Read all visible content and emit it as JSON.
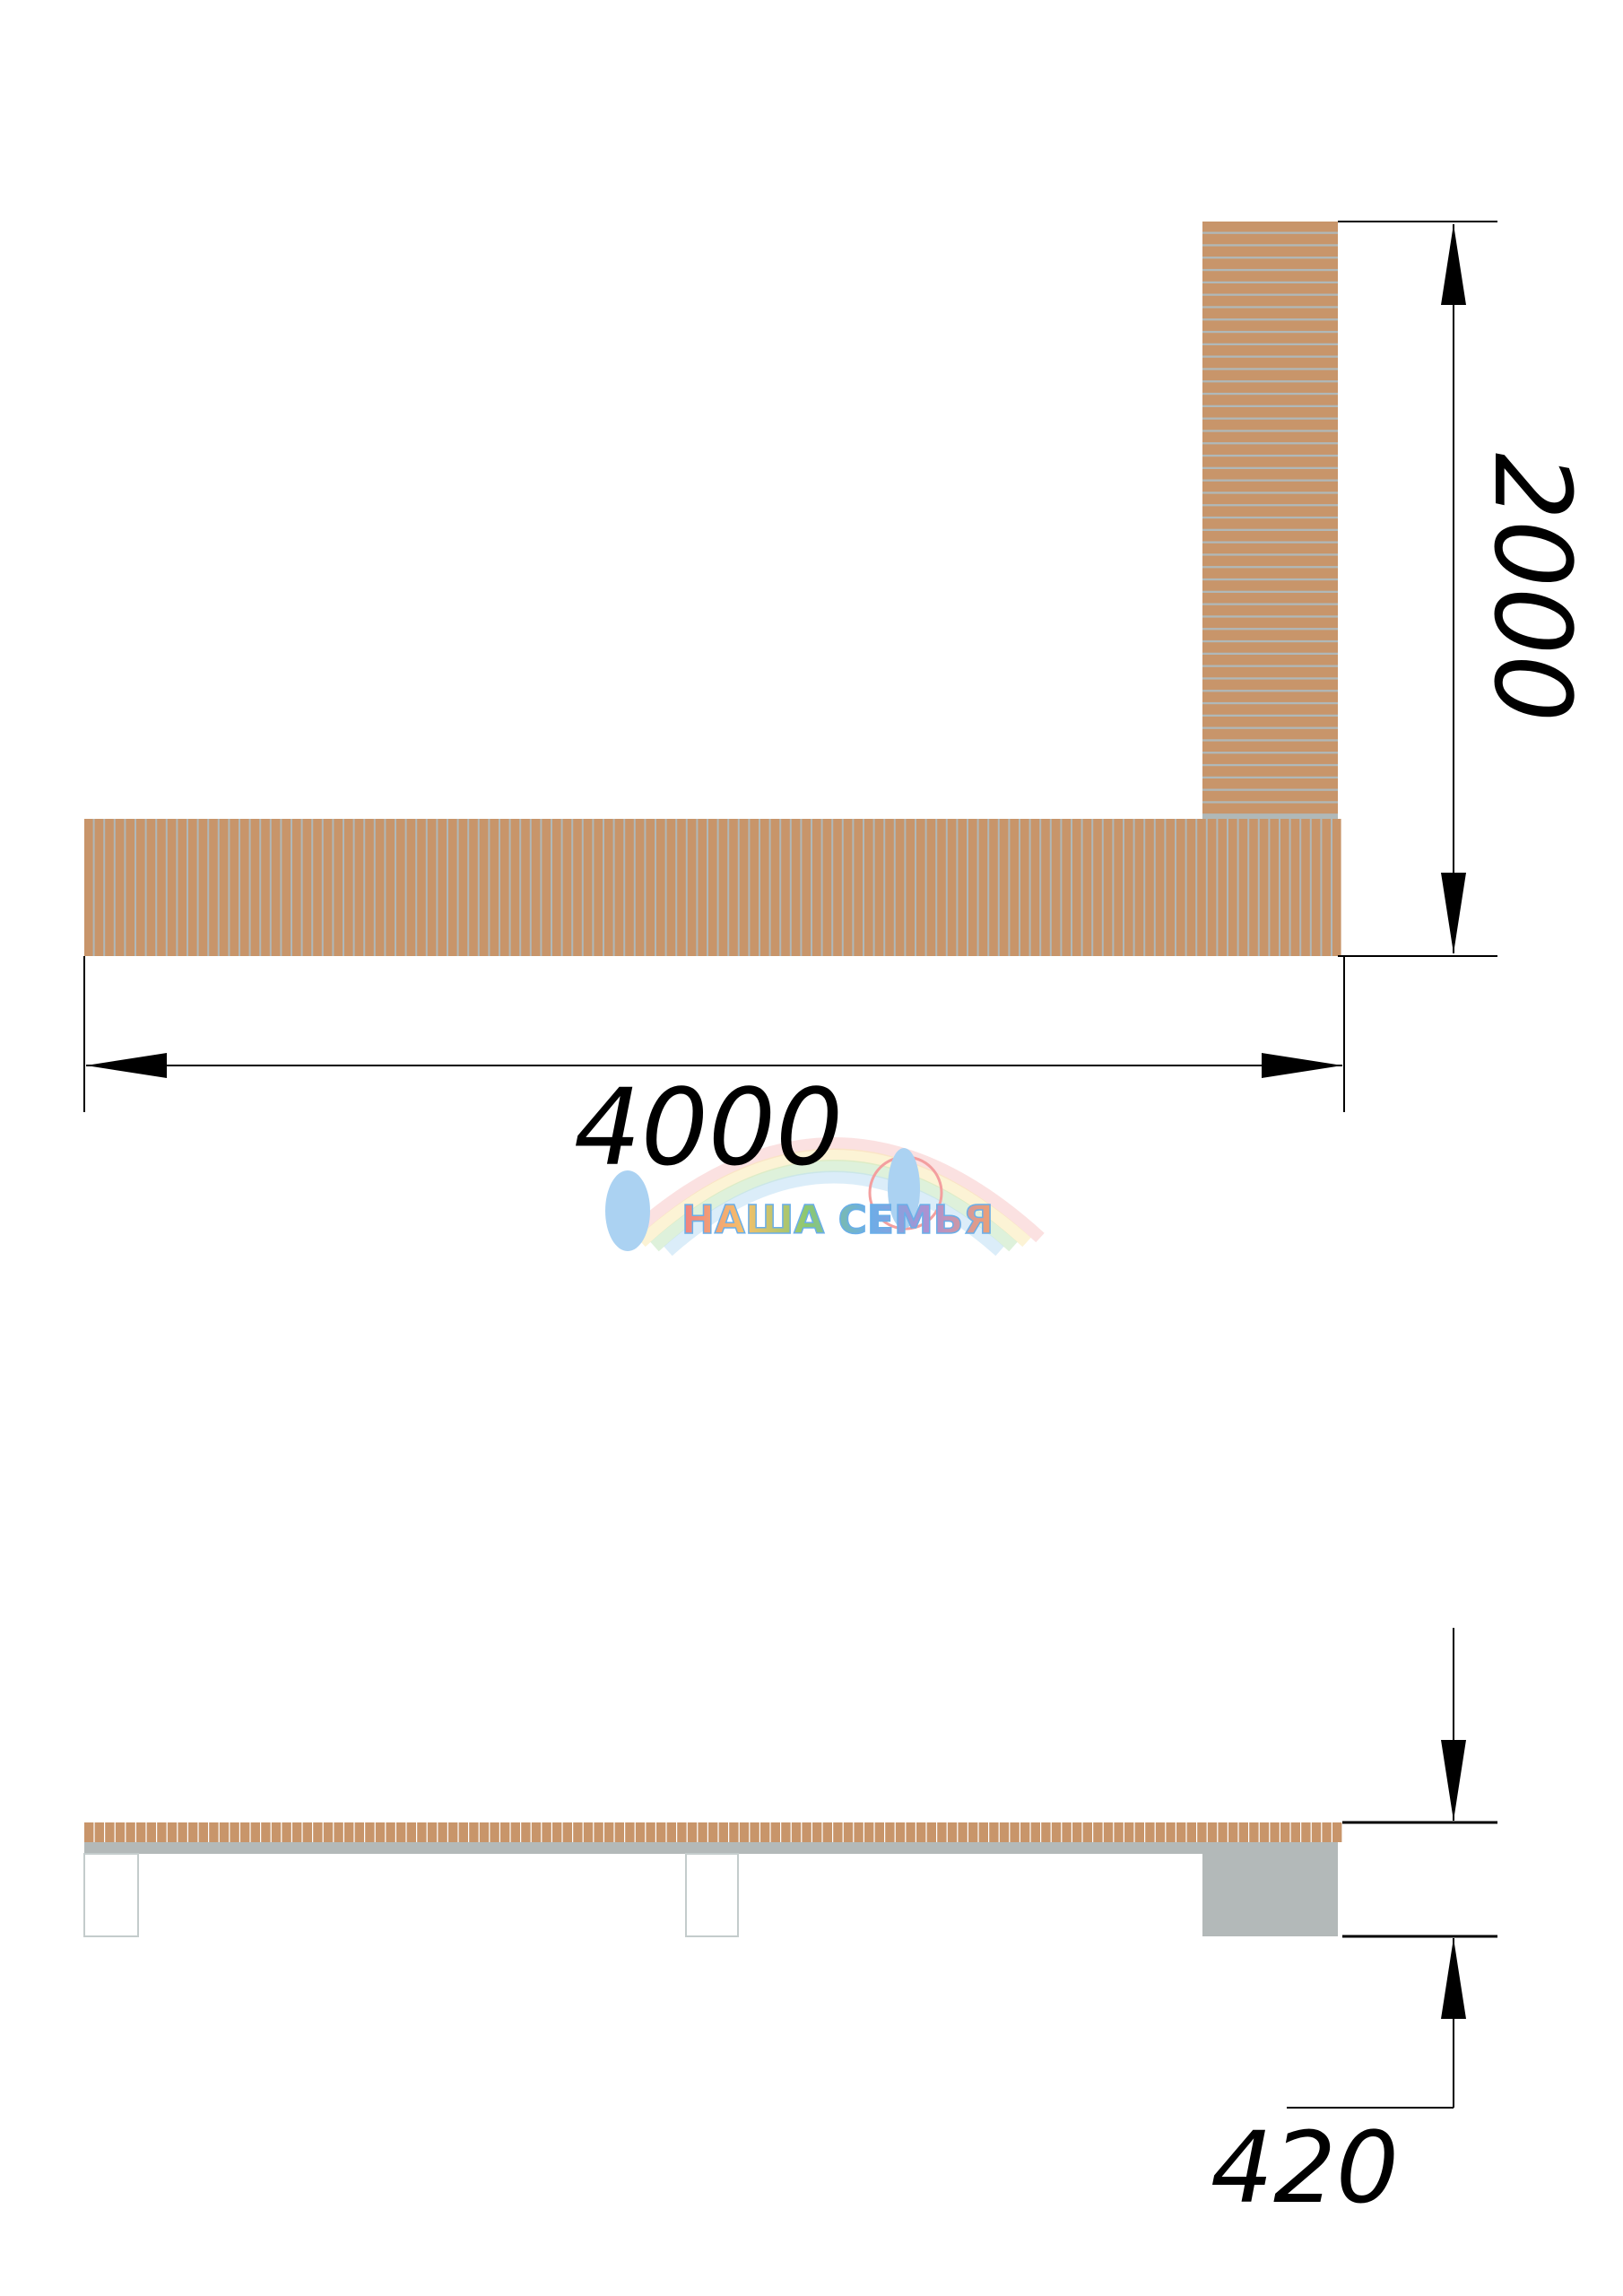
{
  "drawing": {
    "plan_view": {
      "dimension_length": "4000",
      "dimension_depth": "2000"
    },
    "side_view": {
      "dimension_height": "420"
    },
    "logo": {
      "text": "НАША СЕМЬЯ"
    },
    "colors": {
      "wood": "#c8956a",
      "wood_gap": "#b0b8b8",
      "frame": "#b3b9b9",
      "line": "#000000"
    }
  }
}
